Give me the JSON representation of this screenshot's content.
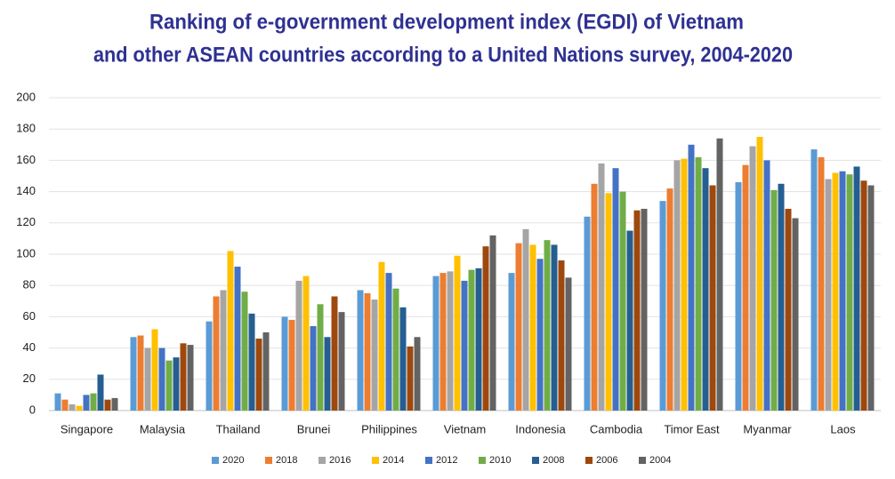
{
  "chart_data": {
    "type": "bar",
    "title": [
      "Ranking of e-government development index (EGDI) of Vietnam",
      "and other ASEAN countries according to a United Nations survey, 2004-2020"
    ],
    "categories": [
      "Singapore",
      "Malaysia",
      "Thailand",
      "Brunei",
      "Philippines",
      "Vietnam",
      "Indonesia",
      "Cambodia",
      "Timor East",
      "Myanmar",
      "Laos"
    ],
    "series": [
      {
        "name": "2020",
        "color": "#5b9bd5",
        "values": [
          11,
          47,
          57,
          60,
          77,
          86,
          88,
          124,
          134,
          146,
          167
        ]
      },
      {
        "name": "2018",
        "color": "#ed7d31",
        "values": [
          7,
          48,
          73,
          58,
          75,
          88,
          107,
          145,
          142,
          157,
          162
        ]
      },
      {
        "name": "2016",
        "color": "#a5a5a5",
        "values": [
          4,
          40,
          77,
          83,
          71,
          89,
          116,
          158,
          160,
          169,
          148
        ]
      },
      {
        "name": "2014",
        "color": "#ffc000",
        "values": [
          3,
          52,
          102,
          86,
          95,
          99,
          106,
          139,
          161,
          175,
          152
        ]
      },
      {
        "name": "2012",
        "color": "#4472c4",
        "values": [
          10,
          40,
          92,
          54,
          88,
          83,
          97,
          155,
          170,
          160,
          153
        ]
      },
      {
        "name": "2010",
        "color": "#70ad47",
        "values": [
          11,
          32,
          76,
          68,
          78,
          90,
          109,
          140,
          162,
          141,
          151
        ]
      },
      {
        "name": "2008",
        "color": "#255e91",
        "values": [
          23,
          34,
          62,
          47,
          66,
          91,
          106,
          115,
          155,
          145,
          156
        ]
      },
      {
        "name": "2006",
        "color": "#9e480e",
        "values": [
          7,
          43,
          46,
          73,
          41,
          105,
          96,
          128,
          144,
          129,
          147
        ]
      },
      {
        "name": "2004",
        "color": "#636363",
        "values": [
          8,
          42,
          50,
          63,
          47,
          112,
          85,
          129,
          174,
          123,
          144
        ]
      }
    ],
    "ylim": [
      0,
      200
    ],
    "yticks": [
      0,
      20,
      40,
      60,
      80,
      100,
      120,
      140,
      160,
      180,
      200
    ],
    "grid": true,
    "legend": "bottom"
  }
}
